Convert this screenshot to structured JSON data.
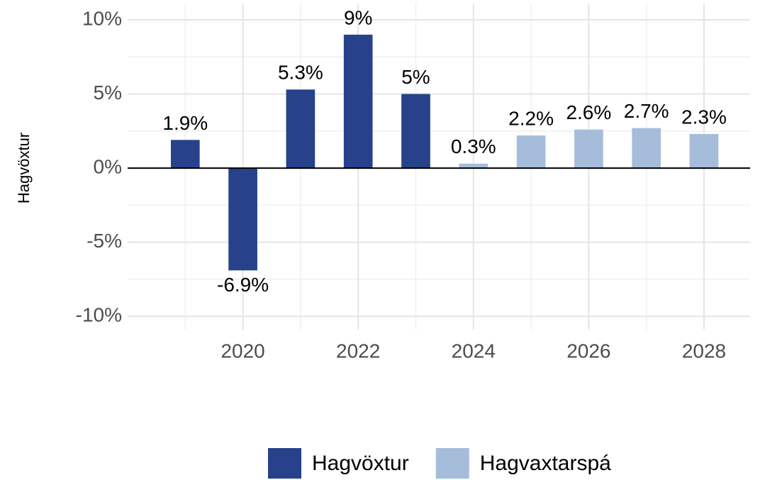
{
  "chart_data": {
    "type": "bar",
    "y_label": "Hagvöxtur",
    "x": [
      2019,
      2020,
      2021,
      2022,
      2023,
      2024,
      2025,
      2026,
      2027,
      2028
    ],
    "series": [
      {
        "name": "Hagvöxtur",
        "color": "#27418a",
        "values": [
          1.9,
          -6.9,
          5.3,
          9,
          5,
          null,
          null,
          null,
          null,
          null
        ],
        "value_labels": [
          "1.9%",
          "-6.9%",
          "5.3%",
          "9%",
          "5%",
          null,
          null,
          null,
          null,
          null
        ]
      },
      {
        "name": "Hagvaxtarspá",
        "color": "#a6bcdb",
        "values": [
          null,
          null,
          null,
          null,
          null,
          0.3,
          2.2,
          2.6,
          2.7,
          2.3
        ],
        "value_labels": [
          null,
          null,
          null,
          null,
          null,
          "0.3%",
          "2.2%",
          "2.6%",
          "2.7%",
          "2.3%"
        ]
      }
    ],
    "xlim": [
      2018,
      2028.8
    ],
    "xticks": [
      2020,
      2022,
      2024,
      2026,
      2028
    ],
    "x_minor_ticks": [
      2019,
      2021,
      2023,
      2025,
      2027
    ],
    "ylim": [
      -10.9,
      11.1
    ],
    "yticks": [
      {
        "value": -10,
        "label": "-10%"
      },
      {
        "value": -5,
        "label": "-5%"
      },
      {
        "value": 0,
        "label": "0%"
      },
      {
        "value": 5,
        "label": "5%"
      },
      {
        "value": 10,
        "label": "10%"
      }
    ],
    "y_minor_ticks": [
      -7.5,
      -2.5,
      2.5,
      7.5
    ],
    "grid": true,
    "legend": "bottom"
  }
}
